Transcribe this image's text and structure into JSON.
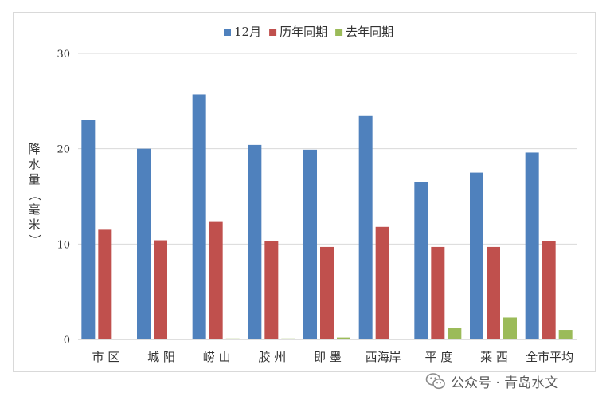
{
  "chart_data": {
    "type": "bar",
    "title": "",
    "xlabel": "",
    "ylabel": "降水量（毫米）",
    "ylim": [
      0,
      30
    ],
    "yticks": [
      0,
      10,
      20,
      30
    ],
    "grid": true,
    "legend_position": "top",
    "categories": [
      "市区",
      "城阳",
      "崂山",
      "胶州",
      "即墨",
      "西海岸",
      "平度",
      "莱西",
      "全市平均"
    ],
    "category_labels": [
      "市 区",
      "城 阳",
      "崂 山",
      "胶 州",
      "即 墨",
      "西海岸",
      "平 度",
      "莱 西",
      "全市平均"
    ],
    "series": [
      {
        "name": "12月",
        "color": "#4f81bd",
        "values": [
          23.0,
          20.0,
          25.7,
          20.4,
          19.9,
          23.5,
          16.5,
          17.5,
          19.6
        ]
      },
      {
        "name": "历年同期",
        "color": "#c0504d",
        "values": [
          11.5,
          10.4,
          12.4,
          10.3,
          9.7,
          11.8,
          9.7,
          9.7,
          10.3
        ]
      },
      {
        "name": "去年同期",
        "color": "#9bbb59",
        "values": [
          0.0,
          0.0,
          0.1,
          0.1,
          0.2,
          0.0,
          1.2,
          2.3,
          1.0
        ]
      }
    ]
  },
  "watermark": {
    "text": "公众号 · 青岛水文",
    "icon": "wechat-icon"
  }
}
